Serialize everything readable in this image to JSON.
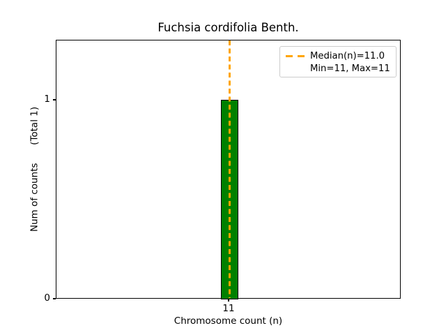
{
  "chart_data": {
    "type": "bar",
    "title": "Fuchsia cordifolia Benth.",
    "xlabel": "Chromosome count (n)",
    "ylabel": "Num of counts      (Total 1)",
    "categories": [
      "11"
    ],
    "values": [
      1
    ],
    "xticks": [
      "11"
    ],
    "yticks": [
      "0",
      "1"
    ],
    "ylim": [
      0,
      1.3
    ],
    "grid": false,
    "total_counts": 1,
    "median": 11.0,
    "min": 11,
    "max": 11,
    "bar_color": "#008000",
    "bar_edge_color": "#000000",
    "median_line_color": "#FFA500",
    "median_line_style": "dashed",
    "legend": {
      "position": "upper right",
      "entries": [
        {
          "label": "Median(n)=11.0",
          "marker": "orange-dashed-line"
        },
        {
          "label": "Min=11, Max=11",
          "marker": "none"
        }
      ]
    }
  }
}
